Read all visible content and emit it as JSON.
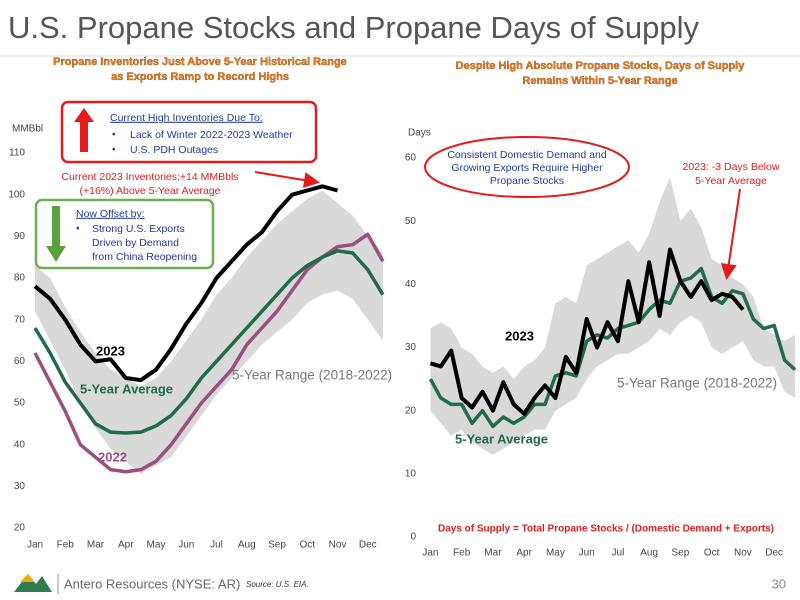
{
  "title": "U.S. Propane Stocks and  Propane Days of Supply",
  "footer": {
    "company": "Antero Resources (NYSE: AR)",
    "source": "Source: U.S. EIA.",
    "page": "30"
  },
  "chart_data": [
    {
      "type": "line",
      "title_lines": [
        "Propane Inventories Just Above 5-Year Historical Range",
        "as Exports Ramp to Record Highs"
      ],
      "y_label": "MMBbl",
      "categories": [
        "Jan",
        null,
        "Feb",
        null,
        "Mar",
        null,
        "Apr",
        null,
        "May",
        null,
        "Jun",
        null,
        "Jul",
        null,
        "Aug",
        null,
        "Sep",
        null,
        "Oct",
        null,
        "Nov",
        null,
        "Dec",
        null
      ],
      "ylim": [
        20,
        110
      ],
      "yticks": [
        20,
        30,
        40,
        50,
        60,
        70,
        80,
        90,
        100,
        110
      ],
      "grid": false,
      "series": [
        {
          "name": "5-Year Range (2018-2022)",
          "color": "#d9d9d9",
          "low": [
            72,
            65,
            58,
            50,
            44,
            39,
            36,
            33,
            35,
            37,
            42,
            47,
            52,
            56,
            60,
            64,
            67,
            70,
            74,
            76,
            77,
            75,
            70,
            65
          ],
          "high": [
            83,
            80,
            73,
            67,
            62,
            58,
            56,
            54,
            56,
            60,
            65,
            70,
            76,
            80,
            85,
            89,
            93,
            96,
            99,
            101,
            98,
            95,
            90,
            86
          ]
        },
        {
          "name": "2022",
          "color": "#9b4f7c",
          "values": [
            62,
            55,
            48,
            40,
            37,
            34,
            33.5,
            34,
            36,
            40,
            45,
            50,
            54,
            58,
            64,
            68,
            72,
            77,
            82,
            85,
            87.5,
            88,
            90.5,
            84
          ]
        },
        {
          "name": "5-Year Average",
          "color": "#1f6b4a",
          "values": [
            68,
            62,
            55,
            50,
            45,
            43,
            42.8,
            43,
            44.5,
            47,
            51,
            56,
            60,
            64,
            68,
            72,
            76,
            80,
            83,
            85,
            86.5,
            86,
            82,
            76
          ]
        },
        {
          "name": "2023",
          "color": "#000000",
          "values": [
            78,
            75,
            70,
            64,
            60,
            60.5,
            56,
            55.5,
            58,
            63,
            69,
            74,
            80,
            84,
            88,
            91,
            96,
            100,
            101,
            102,
            101,
            null,
            null,
            null
          ]
        }
      ],
      "callout_title": "Current High Inventories Due To:",
      "callout_items": [
        "Lack of Winter 2022-2023 Weather",
        "U.S. PDH Outages"
      ],
      "note_lines": [
        "Current 2023 Inventories:+14 MMBbls",
        "(+16%) Above 5-Year Average"
      ],
      "offset_title": "Now Offset by:",
      "offset_lines": [
        "Strong U.S. Exports",
        "Driven by Demand",
        "from China Reopening"
      ]
    },
    {
      "type": "line",
      "title_lines": [
        "Despite High Absolute Propane Stocks, Days of Supply",
        "Remains Within 5-Year Range"
      ],
      "y_label": "Days",
      "categories": [
        "Jan",
        null,
        null,
        "Feb",
        null,
        null,
        "Mar",
        null,
        null,
        "Apr",
        null,
        null,
        "May",
        null,
        null,
        "Jun",
        null,
        null,
        "Jul",
        null,
        null,
        "Aug",
        null,
        null,
        "Sep",
        null,
        null,
        "Oct",
        null,
        null,
        "Nov",
        null,
        null,
        "Dec",
        null,
        null
      ],
      "ylim": [
        0,
        60
      ],
      "yticks": [
        0,
        10,
        20,
        30,
        40,
        50,
        60
      ],
      "grid": false,
      "series": [
        {
          "name": "5-Year Range (2018-2022)",
          "color": "#d9d9d9",
          "low": [
            20,
            18,
            16,
            17,
            15,
            14,
            13,
            14,
            15,
            16,
            17,
            17,
            20,
            21,
            22,
            25,
            27,
            28,
            29,
            29,
            30,
            31,
            33,
            32,
            34,
            35,
            34,
            30,
            29,
            30,
            31,
            28,
            27,
            27,
            23,
            22
          ],
          "high": [
            33,
            34,
            33,
            30,
            29,
            27,
            26,
            27,
            25,
            27,
            28,
            30,
            37,
            38,
            37,
            43,
            44,
            45,
            46,
            47,
            45,
            48,
            53,
            57,
            50,
            52,
            49,
            44,
            43,
            41,
            40,
            38,
            33,
            32,
            31,
            32
          ]
        },
        {
          "name": "5-Year Average",
          "color": "#1f6b4a",
          "values": [
            25,
            22,
            21,
            21,
            18,
            20,
            17.5,
            19,
            18,
            19,
            21,
            21,
            25.5,
            26,
            25.5,
            31,
            32,
            31.5,
            33,
            33.5,
            34,
            36,
            37.5,
            37,
            40.5,
            41,
            42.5,
            38,
            37,
            39,
            38.5,
            34.5,
            33,
            33.5,
            28,
            26.5
          ]
        },
        {
          "name": "2023",
          "color": "#000000",
          "values": [
            27.5,
            27,
            29.5,
            22,
            20.5,
            23,
            20,
            24.5,
            21,
            19.5,
            22,
            24,
            22,
            28.5,
            26,
            34.5,
            30,
            34,
            31,
            40.5,
            34,
            43.5,
            35,
            45.5,
            40.5,
            38,
            40.5,
            37.5,
            38.5,
            38,
            36,
            null,
            null,
            null,
            null,
            null
          ]
        }
      ],
      "bubble_lines": [
        "Consistent Domestic Demand and",
        "Growing Exports Require Higher",
        "Propane Stocks"
      ],
      "note_lines": [
        "2023: -3 Days Below",
        "5-Year Average"
      ],
      "formula": "Days of Supply = Total Propane Stocks / (Domestic Demand + Exports)"
    }
  ]
}
